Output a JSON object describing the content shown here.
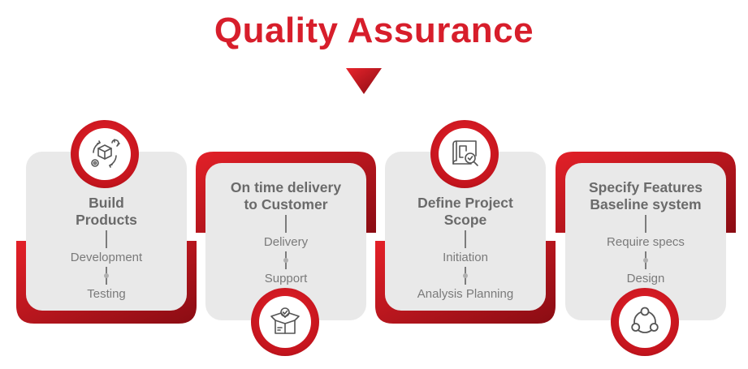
{
  "title": "Quality Assurance",
  "colors": {
    "accent": "#d71e2b",
    "accent_dark": "#8a0c13",
    "card_bg": "#e9e9e9",
    "text": "#6a6a6a"
  },
  "cards": [
    {
      "heading_lines": [
        "Build",
        "Products"
      ],
      "stages": [
        "Development",
        "Testing"
      ],
      "icon": "build-products-icon"
    },
    {
      "heading_lines": [
        "On time delivery",
        "to Customer"
      ],
      "stages": [
        "Delivery",
        "Support"
      ],
      "icon": "delivery-box-icon"
    },
    {
      "heading_lines": [
        "Define Project",
        "Scope"
      ],
      "stages": [
        "Initiation",
        "Analysis Planning"
      ],
      "icon": "blueprint-magnifier-icon"
    },
    {
      "heading_lines": [
        "Specify Features",
        "Baseline system"
      ],
      "stages": [
        "Require specs",
        "Design"
      ],
      "icon": "network-cycle-icon"
    }
  ]
}
